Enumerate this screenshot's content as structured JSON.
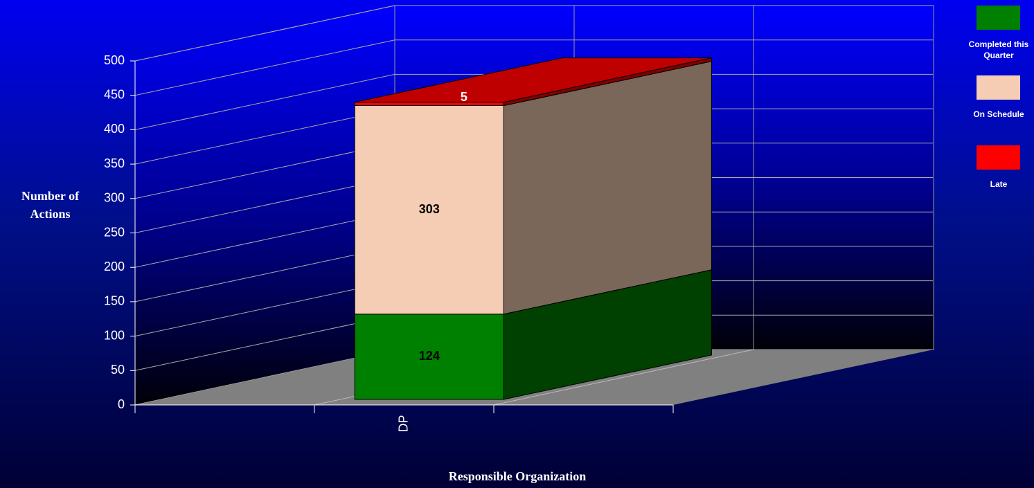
{
  "chart_data": {
    "type": "bar3d_stacked",
    "categories": [
      "DP"
    ],
    "series": [
      {
        "name": "Completed this Quarter",
        "color": "#008000",
        "values": [
          124
        ]
      },
      {
        "name": "On Schedule",
        "color": "#f4cdb4",
        "values": [
          303
        ]
      },
      {
        "name": "Late",
        "color": "#ff0000",
        "values": [
          5
        ]
      }
    ],
    "ylim": [
      0,
      500
    ],
    "yticks": [
      0,
      50,
      100,
      150,
      200,
      250,
      300,
      350,
      400,
      450,
      500
    ],
    "grid": true,
    "xlabel": "Responsible Organization",
    "ylabel": "Number of Actions",
    "legend": "right"
  }
}
